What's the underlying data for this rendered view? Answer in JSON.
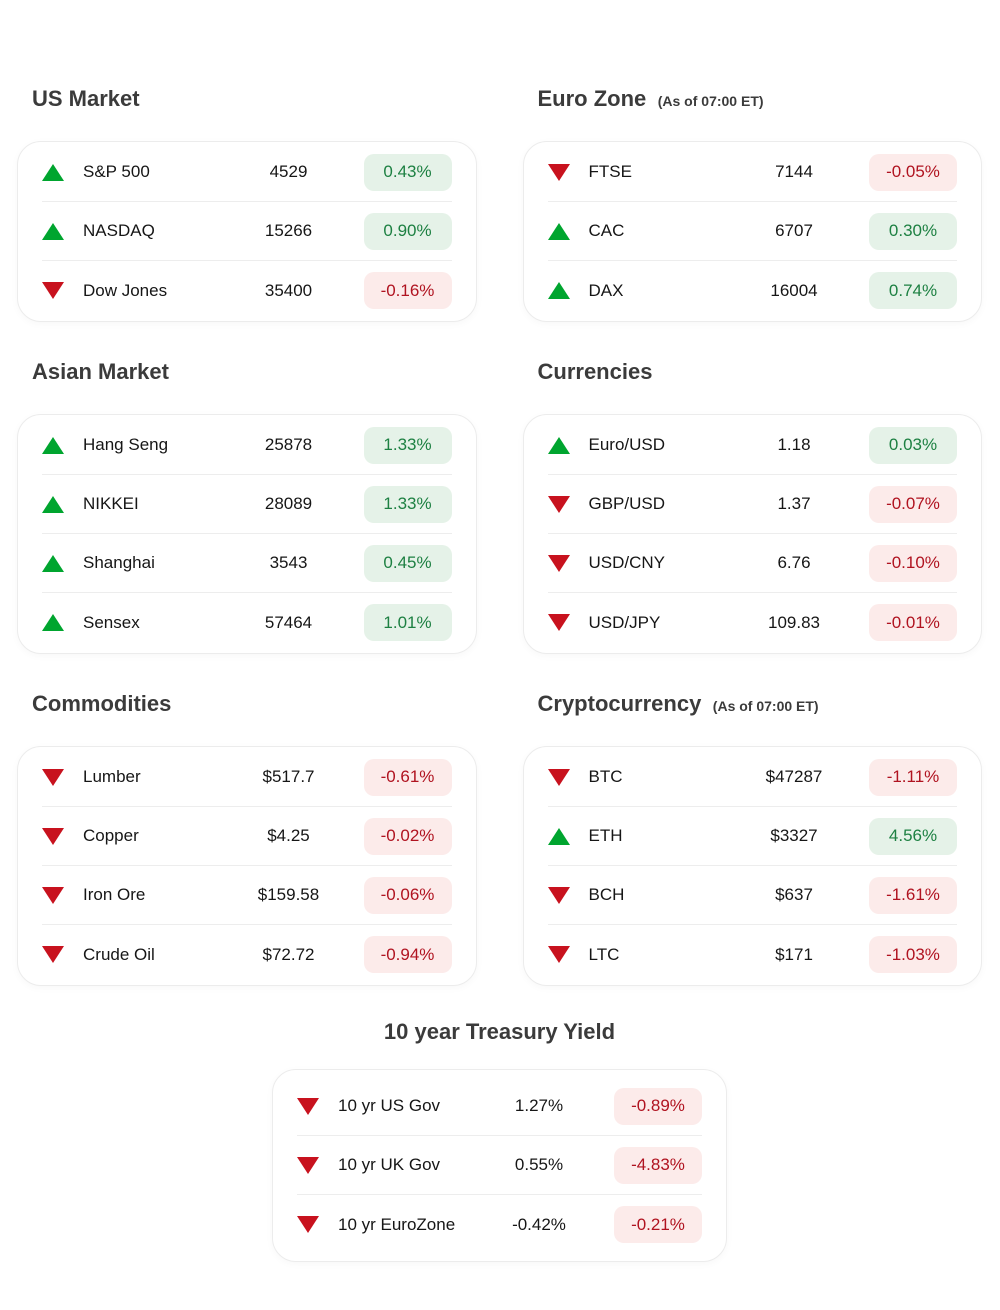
{
  "colors": {
    "triangle_up": "#00a52f",
    "triangle_down": "#c8121e",
    "badge_up_bg": "#e5f2e8",
    "badge_up_text": "#1d8042",
    "badge_down_bg": "#fcebea",
    "badge_down_text": "#b01320"
  },
  "icons": {
    "up": "up-triangle-icon",
    "down": "down-triangle-icon"
  },
  "sections": [
    {
      "id": "us-market",
      "title": "US Market",
      "subtitle": "",
      "rows": [
        {
          "direction": "up",
          "label": "S&P 500",
          "value": "4529",
          "change": "0.43%"
        },
        {
          "direction": "up",
          "label": "NASDAQ",
          "value": "15266",
          "change": "0.90%"
        },
        {
          "direction": "down",
          "label": "Dow Jones",
          "value": "35400",
          "change": "-0.16%"
        }
      ]
    },
    {
      "id": "euro-zone",
      "title": "Euro Zone",
      "subtitle": "(As of 07:00 ET)",
      "rows": [
        {
          "direction": "down",
          "label": "FTSE",
          "value": "7144",
          "change": "-0.05%"
        },
        {
          "direction": "up",
          "label": "CAC",
          "value": "6707",
          "change": "0.30%"
        },
        {
          "direction": "up",
          "label": "DAX",
          "value": "16004",
          "change": "0.74%"
        }
      ]
    },
    {
      "id": "asian-market",
      "title": "Asian Market",
      "subtitle": "",
      "rows": [
        {
          "direction": "up",
          "label": "Hang Seng",
          "value": "25878",
          "change": "1.33%"
        },
        {
          "direction": "up",
          "label": "NIKKEI",
          "value": "28089",
          "change": "1.33%"
        },
        {
          "direction": "up",
          "label": "Shanghai",
          "value": "3543",
          "change": "0.45%"
        },
        {
          "direction": "up",
          "label": "Sensex",
          "value": "57464",
          "change": "1.01%"
        }
      ]
    },
    {
      "id": "currencies",
      "title": "Currencies",
      "subtitle": "",
      "rows": [
        {
          "direction": "up",
          "label": "Euro/USD",
          "value": "1.18",
          "change": "0.03%"
        },
        {
          "direction": "down",
          "label": "GBP/USD",
          "value": "1.37",
          "change": "-0.07%"
        },
        {
          "direction": "down",
          "label": "USD/CNY",
          "value": "6.76",
          "change": "-0.10%"
        },
        {
          "direction": "down",
          "label": "USD/JPY",
          "value": "109.83",
          "change": "-0.01%"
        }
      ]
    },
    {
      "id": "commodities",
      "title": "Commodities",
      "subtitle": "",
      "rows": [
        {
          "direction": "down",
          "label": "Lumber",
          "value": "$517.7",
          "change": "-0.61%"
        },
        {
          "direction": "down",
          "label": "Copper",
          "value": "$4.25",
          "change": "-0.02%"
        },
        {
          "direction": "down",
          "label": "Iron Ore",
          "value": "$159.58",
          "change": "-0.06%"
        },
        {
          "direction": "down",
          "label": "Crude Oil",
          "value": "$72.72",
          "change": "-0.94%"
        }
      ]
    },
    {
      "id": "cryptocurrency",
      "title": "Cryptocurrency",
      "subtitle": "(As of 07:00 ET)",
      "rows": [
        {
          "direction": "down",
          "label": "BTC",
          "value": "$47287",
          "change": "-1.11%"
        },
        {
          "direction": "up",
          "label": "ETH",
          "value": "$3327",
          "change": "4.56%"
        },
        {
          "direction": "down",
          "label": "BCH",
          "value": "$637",
          "change": "-1.61%"
        },
        {
          "direction": "down",
          "label": "LTC",
          "value": "$171",
          "change": "-1.03%"
        }
      ]
    },
    {
      "id": "treasury-yield",
      "title": "10 year Treasury Yield",
      "subtitle": "",
      "rows": [
        {
          "direction": "down",
          "label": "10 yr US Gov",
          "value": "1.27%",
          "change": "-0.89%"
        },
        {
          "direction": "down",
          "label": "10 yr UK Gov",
          "value": "0.55%",
          "change": "-4.83%"
        },
        {
          "direction": "down",
          "label": "10 yr EuroZone",
          "value": "-0.42%",
          "change": "-0.21%"
        }
      ]
    }
  ]
}
